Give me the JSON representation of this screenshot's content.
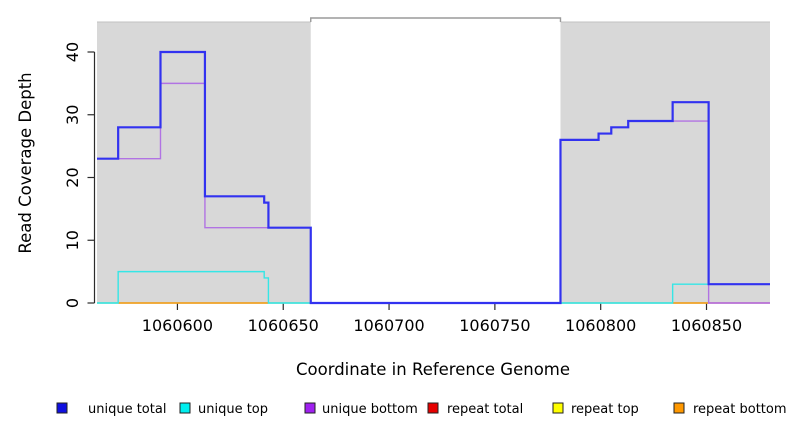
{
  "chart_data": {
    "type": "line",
    "subtype": "step-coverage-plot",
    "title": "",
    "xlabel": "Coordinate in Reference Genome",
    "ylabel": "Read Coverage Depth",
    "xlim": [
      1060562,
      1060880
    ],
    "ylim": [
      0,
      45
    ],
    "xticks": [
      1060600,
      1060650,
      1060700,
      1060750,
      1060800,
      1060850
    ],
    "yticks": [
      0,
      10,
      20,
      30,
      40
    ],
    "grid": false,
    "legend_position": "bottom",
    "colors": {
      "shaded_region": "#d8d8d8",
      "gap_top_line": "#9a9a9a",
      "axis": "#2b2b2b"
    },
    "shaded_regions": [
      {
        "name": "repeat-region-left",
        "x0": 1060562,
        "x1": 1060663
      },
      {
        "name": "repeat-region-right",
        "x0": 1060781,
        "x1": 1060880
      }
    ],
    "gap_region": {
      "name": "zero-coverage-gap",
      "x0": 1060663,
      "x1": 1060781
    },
    "series": [
      {
        "name": "repeat top",
        "legend_color": "#ffff00",
        "line_color": "#8fce9e",
        "width": 1.6,
        "parts": [
          [
            [
              1060562,
              0
            ],
            [
              1060663,
              0
            ]
          ],
          [
            [
              1060781,
              0
            ],
            [
              1060851,
              0
            ]
          ]
        ]
      },
      {
        "name": "repeat bottom",
        "legend_color": "#ff9800",
        "line_color": "#ff9a10",
        "width": 1.6,
        "parts": [
          [
            [
              1060572,
              0
            ],
            [
              1060643,
              0
            ]
          ],
          [
            [
              1060834,
              0
            ],
            [
              1060851,
              0
            ]
          ]
        ]
      },
      {
        "name": "repeat total",
        "legend_color": "#e60000",
        "line_color": "#d6527a",
        "width": 1.4,
        "parts": [
          [
            [
              1060851,
              0
            ],
            [
              1060880,
              0
            ]
          ]
        ]
      },
      {
        "name": "unique top",
        "legend_color": "#00eeee",
        "line_color": "#35e6e6",
        "width": 1.4,
        "parts": [
          [
            [
              1060562,
              0
            ],
            [
              1060572,
              5
            ],
            [
              1060641,
              4
            ],
            [
              1060643,
              0
            ],
            [
              1060834,
              3
            ],
            [
              1060880,
              3
            ]
          ]
        ]
      },
      {
        "name": "unique bottom",
        "legend_color": "#a020f0",
        "line_color": "#b173e3",
        "width": 1.4,
        "parts": [
          [
            [
              1060562,
              23
            ],
            [
              1060592,
              35
            ],
            [
              1060613,
              12
            ],
            [
              1060663,
              0
            ],
            [
              1060781,
              26
            ],
            [
              1060799,
              27
            ],
            [
              1060805,
              28
            ],
            [
              1060813,
              29
            ],
            [
              1060851,
              0
            ],
            [
              1060880,
              0
            ]
          ]
        ]
      },
      {
        "name": "unique total",
        "legend_color": "#1010e0",
        "line_color": "#3232f0",
        "width": 2.2,
        "parts": [
          [
            [
              1060562,
              23
            ],
            [
              1060572,
              28
            ],
            [
              1060592,
              40
            ],
            [
              1060613,
              17
            ],
            [
              1060641,
              16
            ],
            [
              1060643,
              12
            ],
            [
              1060663,
              0
            ],
            [
              1060781,
              26
            ],
            [
              1060799,
              27
            ],
            [
              1060805,
              28
            ],
            [
              1060813,
              29
            ],
            [
              1060834,
              32
            ],
            [
              1060851,
              3
            ],
            [
              1060880,
              3
            ]
          ]
        ]
      }
    ],
    "legend": [
      "unique total",
      "unique top",
      "unique bottom",
      "repeat total",
      "repeat top",
      "repeat bottom"
    ]
  }
}
